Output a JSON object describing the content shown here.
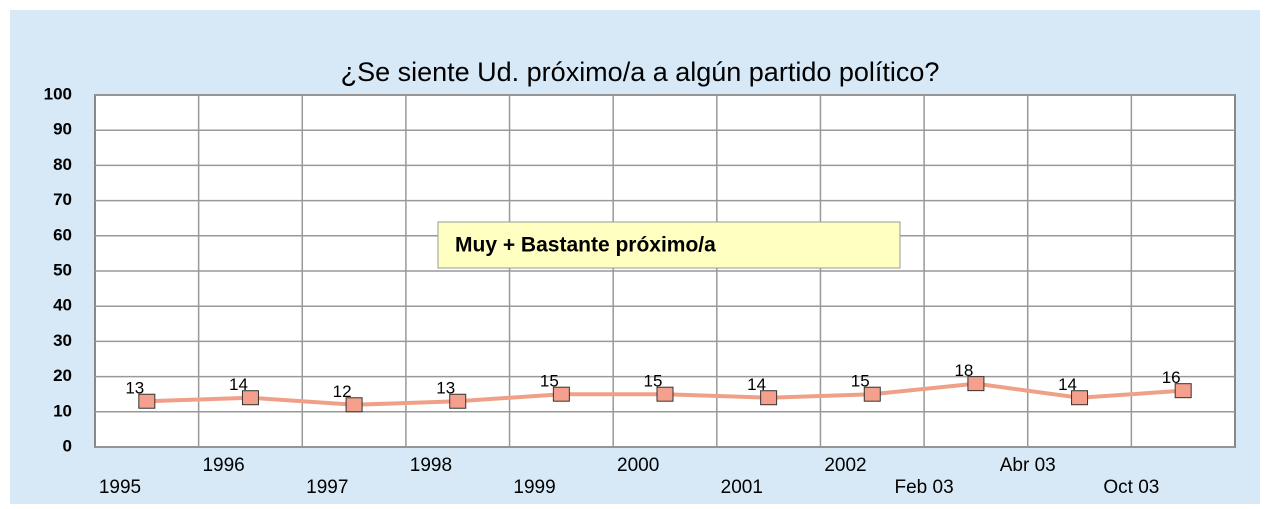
{
  "chart_data": {
    "type": "line",
    "title": "¿Se siente Ud. próximo/a a algún partido político?",
    "categories": [
      "1995",
      "1996",
      "1997",
      "1998",
      "1999",
      "2000",
      "2001",
      "2002",
      "Feb 03",
      "Abr 03",
      "Oct 03"
    ],
    "series": [
      {
        "name": "Muy + Bastante próximo/a",
        "color": "#f0a088",
        "marker_color": "#f4a08c",
        "values": [
          13,
          14,
          12,
          13,
          15,
          15,
          14,
          15,
          18,
          14,
          16
        ]
      }
    ],
    "ylim": [
      0,
      100
    ],
    "yticks": [
      0,
      10,
      20,
      30,
      40,
      50,
      60,
      70,
      80,
      90,
      100
    ],
    "grid": true
  }
}
